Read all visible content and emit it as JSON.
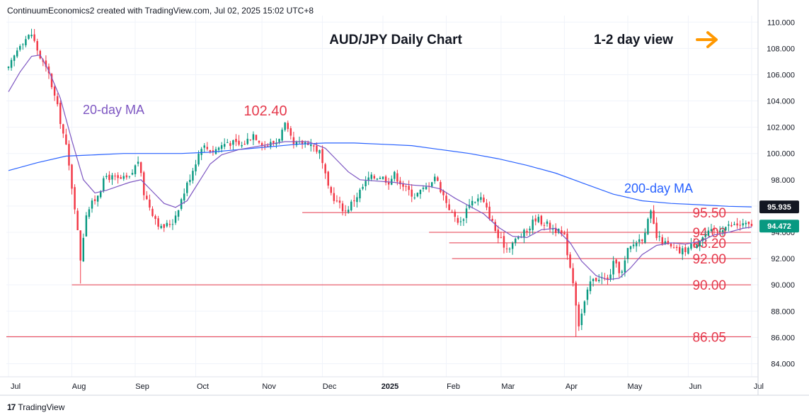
{
  "header": {
    "attribution": "ContinuumEconomics2 created with TradingView.com, Jul 02, 2025 15:02 UTC+8"
  },
  "footer": {
    "brand": "TradingView",
    "logo_icon": "tradingview-logo-icon"
  },
  "colors": {
    "up": "#089981",
    "down": "#f23645",
    "level_line": "#e5384b",
    "level_text": "#e5384b",
    "ma20": "#7e57c2",
    "ma200": "#2962ff",
    "arrow": "#ff9800",
    "grid": "#f0f3fa",
    "axis_text": "#131722",
    "price_label_bg": "#131722",
    "current_label_bg": "#089981"
  },
  "chart_data": {
    "type": "candlestick",
    "title": "AUD/JPY Daily Chart",
    "subtitle": "1-2 day view",
    "arrow_icon": "arrow-right-icon",
    "ylim": [
      83.0,
      110.5
    ],
    "y_ticks": [
      "84.000",
      "86.000",
      "88.000",
      "90.000",
      "92.000",
      "94.000",
      "96.000",
      "98.000",
      "100.000",
      "102.000",
      "104.000",
      "106.000",
      "108.000",
      "110.000"
    ],
    "x_tick_labels": [
      "Jul",
      "Aug",
      "Sep",
      "Oct",
      "Nov",
      "Dec",
      "2025",
      "Feb",
      "Mar",
      "Apr",
      "May",
      "Jun",
      "Jul"
    ],
    "x_tick_positions": [
      0,
      22,
      44,
      65,
      88,
      109,
      130,
      152,
      171,
      193,
      215,
      236,
      258
    ],
    "total_bars": 260,
    "close_path": [
      [
        0,
        106.4
      ],
      [
        4,
        108.4
      ],
      [
        8,
        109.1
      ],
      [
        11,
        107.3
      ],
      [
        14,
        106.0
      ],
      [
        17,
        103.5
      ],
      [
        20,
        100.5
      ],
      [
        23,
        96.0
      ],
      [
        25,
        92.0
      ],
      [
        27,
        95.5
      ],
      [
        30,
        96.5
      ],
      [
        34,
        98.3
      ],
      [
        38,
        98.0
      ],
      [
        42,
        98.1
      ],
      [
        45,
        99.5
      ],
      [
        47,
        97.0
      ],
      [
        50,
        95.5
      ],
      [
        53,
        94.3
      ],
      [
        57,
        94.8
      ],
      [
        60,
        96.5
      ],
      [
        64,
        98.8
      ],
      [
        67,
        100.6
      ],
      [
        71,
        100.2
      ],
      [
        76,
        100.9
      ],
      [
        81,
        100.6
      ],
      [
        85,
        101.5
      ],
      [
        89,
        100.6
      ],
      [
        93,
        100.9
      ],
      [
        96,
        102.1
      ],
      [
        99,
        100.6
      ],
      [
        104,
        100.9
      ],
      [
        108,
        100.1
      ],
      [
        111,
        97.3
      ],
      [
        114,
        96.3
      ],
      [
        117,
        95.6
      ],
      [
        121,
        96.8
      ],
      [
        125,
        98.1
      ],
      [
        129,
        98.3
      ],
      [
        132,
        97.9
      ],
      [
        134,
        98.4
      ],
      [
        138,
        97.3
      ],
      [
        141,
        96.8
      ],
      [
        145,
        97.4
      ],
      [
        148,
        98.3
      ],
      [
        151,
        96.8
      ],
      [
        154,
        95.4
      ],
      [
        157,
        94.7
      ],
      [
        160,
        96.3
      ],
      [
        164,
        96.6
      ],
      [
        167,
        95.3
      ],
      [
        170,
        93.6
      ],
      [
        173,
        92.8
      ],
      [
        177,
        93.6
      ],
      [
        180,
        94.1
      ],
      [
        183,
        95.1
      ],
      [
        187,
        94.6
      ],
      [
        190,
        94.2
      ],
      [
        193,
        93.6
      ],
      [
        196,
        90.3
      ],
      [
        198,
        87.0
      ],
      [
        200,
        88.6
      ],
      [
        202,
        90.2
      ],
      [
        205,
        90.6
      ],
      [
        208,
        90.3
      ],
      [
        210,
        91.6
      ],
      [
        213,
        90.9
      ],
      [
        215,
        92.6
      ],
      [
        218,
        93.3
      ],
      [
        220,
        93.6
      ],
      [
        223,
        95.4
      ],
      [
        225,
        93.6
      ],
      [
        227,
        93.3
      ],
      [
        230,
        92.8
      ],
      [
        233,
        92.5
      ],
      [
        236,
        92.8
      ],
      [
        239,
        93.3
      ],
      [
        242,
        93.8
      ],
      [
        245,
        94.1
      ],
      [
        248,
        94.4
      ],
      [
        251,
        94.5
      ],
      [
        254,
        94.6
      ],
      [
        257,
        94.5
      ],
      [
        258,
        94.47
      ]
    ],
    "candles_approx": true,
    "notable_high": {
      "label": "102.40",
      "value": 102.4,
      "bar": 96
    },
    "notable_low": {
      "value": 86.05,
      "bar": 197
    },
    "ma20": {
      "name": "20-day MA",
      "points": [
        [
          0,
          104.7
        ],
        [
          4,
          106.2
        ],
        [
          8,
          107.4
        ],
        [
          11,
          107.5
        ],
        [
          14,
          106.3
        ],
        [
          18,
          104.2
        ],
        [
          22,
          101.0
        ],
        [
          26,
          98.0
        ],
        [
          30,
          97.0
        ],
        [
          34,
          97.2
        ],
        [
          38,
          97.5
        ],
        [
          42,
          97.8
        ],
        [
          46,
          98.0
        ],
        [
          50,
          97.1
        ],
        [
          54,
          96.2
        ],
        [
          58,
          95.9
        ],
        [
          62,
          96.4
        ],
        [
          66,
          97.8
        ],
        [
          70,
          99.2
        ],
        [
          74,
          99.9
        ],
        [
          80,
          100.3
        ],
        [
          88,
          100.6
        ],
        [
          96,
          100.9
        ],
        [
          104,
          100.9
        ],
        [
          110,
          100.4
        ],
        [
          114,
          99.5
        ],
        [
          118,
          98.6
        ],
        [
          122,
          98.0
        ],
        [
          128,
          97.9
        ],
        [
          134,
          97.8
        ],
        [
          140,
          97.6
        ],
        [
          146,
          97.5
        ],
        [
          150,
          97.3
        ],
        [
          155,
          96.6
        ],
        [
          160,
          96.0
        ],
        [
          165,
          95.4
        ],
        [
          170,
          94.4
        ],
        [
          175,
          93.7
        ],
        [
          180,
          93.6
        ],
        [
          185,
          94.2
        ],
        [
          190,
          94.3
        ],
        [
          195,
          93.2
        ],
        [
          199,
          91.8
        ],
        [
          204,
          90.7
        ],
        [
          208,
          90.4
        ],
        [
          212,
          90.5
        ],
        [
          216,
          91.3
        ],
        [
          220,
          92.3
        ],
        [
          225,
          93.0
        ],
        [
          230,
          93.2
        ],
        [
          235,
          93.1
        ],
        [
          240,
          93.3
        ],
        [
          245,
          93.8
        ],
        [
          250,
          94.0
        ],
        [
          255,
          94.3
        ],
        [
          258,
          94.4
        ]
      ]
    },
    "ma200": {
      "name": "200-day MA",
      "points": [
        [
          0,
          98.7
        ],
        [
          10,
          99.3
        ],
        [
          20,
          99.8
        ],
        [
          30,
          99.9
        ],
        [
          40,
          100.0
        ],
        [
          50,
          100.0
        ],
        [
          60,
          100.0
        ],
        [
          70,
          100.1
        ],
        [
          80,
          100.3
        ],
        [
          90,
          100.5
        ],
        [
          100,
          100.7
        ],
        [
          110,
          100.8
        ],
        [
          120,
          100.8
        ],
        [
          130,
          100.7
        ],
        [
          140,
          100.6
        ],
        [
          150,
          100.3
        ],
        [
          160,
          100.0
        ],
        [
          170,
          99.6
        ],
        [
          180,
          99.1
        ],
        [
          190,
          98.5
        ],
        [
          200,
          97.7
        ],
        [
          210,
          96.9
        ],
        [
          220,
          96.4
        ],
        [
          230,
          96.2
        ],
        [
          240,
          96.1
        ],
        [
          250,
          95.98
        ],
        [
          258,
          95.935
        ]
      ]
    },
    "levels": [
      {
        "value": 95.5,
        "label": "95.50",
        "from_bar": 102
      },
      {
        "value": 94.0,
        "label": "94.00",
        "from_bar": 146
      },
      {
        "value": 93.2,
        "label": "93.20",
        "from_bar": 153
      },
      {
        "value": 92.0,
        "label": "92.00",
        "from_bar": 154
      },
      {
        "value": 90.0,
        "label": "90.00",
        "from_bar": 22
      },
      {
        "value": 86.05,
        "label": "86.05",
        "from_bar": -3
      }
    ],
    "price_labels": [
      {
        "value": 95.935,
        "label": "95.935",
        "kind": "ma200"
      },
      {
        "value": 94.472,
        "label": "94.472",
        "kind": "current"
      }
    ]
  }
}
